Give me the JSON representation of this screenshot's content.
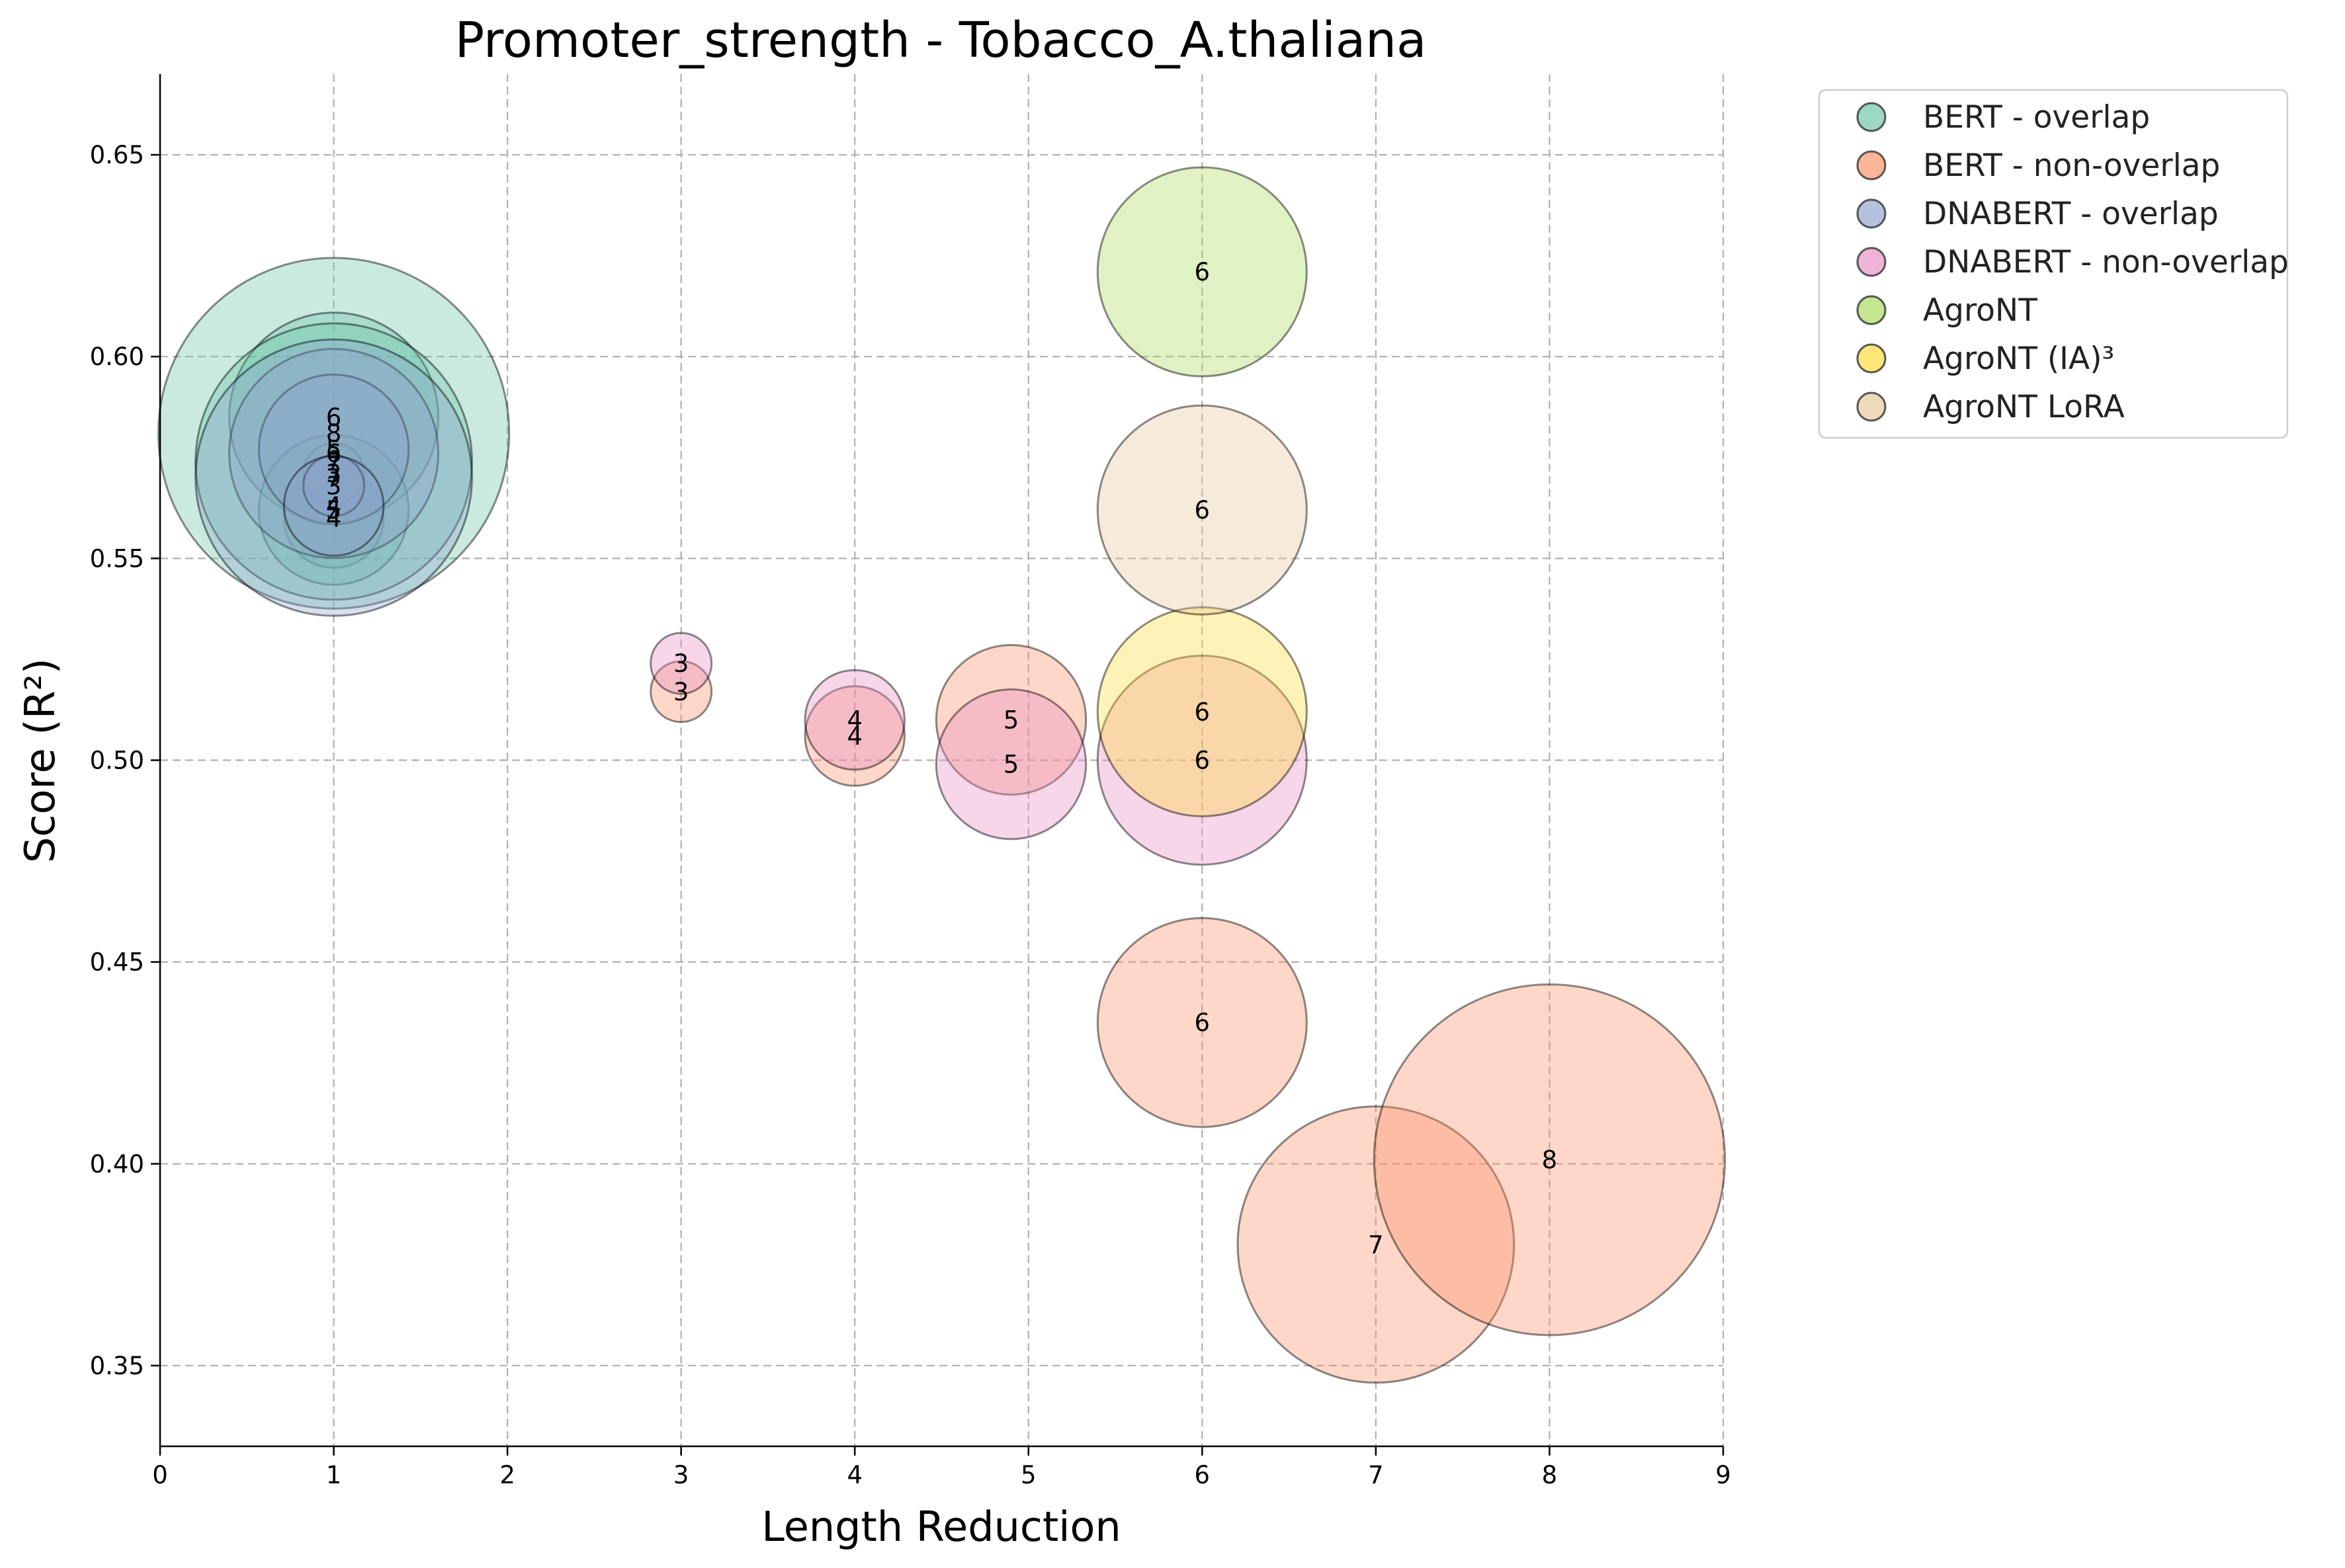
{
  "chart_data": {
    "type": "scatter",
    "title": "Promoter_strength - Tobacco_A.thaliana",
    "xlabel": "Length Reduction",
    "ylabel": "Score (R²)",
    "xlim": [
      0,
      9
    ],
    "ylim": [
      0.33,
      0.67
    ],
    "xticks": [
      "0",
      "1",
      "2",
      "3",
      "4",
      "5",
      "6",
      "7",
      "8",
      "9"
    ],
    "yticks": [
      "0.35",
      "0.40",
      "0.45",
      "0.50",
      "0.55",
      "0.60",
      "0.65"
    ],
    "grid": true,
    "legend_position": "outside-top-right",
    "size_encoding": "bubble area grows with the labelled value",
    "series": [
      {
        "name": "BERT - overlap",
        "color": "#66c2a5",
        "points": [
          {
            "x": 1.0,
            "y": 0.581,
            "label": "8"
          },
          {
            "x": 1.0,
            "y": 0.56,
            "label": "4"
          },
          {
            "x": 1.0,
            "y": 0.585,
            "label": "6"
          },
          {
            "x": 1.0,
            "y": 0.562,
            "label": "5"
          },
          {
            "x": 1.0,
            "y": 0.571,
            "label": "3"
          },
          {
            "x": 1.0,
            "y": 0.574,
            "label": "7"
          }
        ]
      },
      {
        "name": "BERT - non-overlap",
        "color": "#fc8d62",
        "points": [
          {
            "x": 3.0,
            "y": 0.517,
            "label": "3"
          },
          {
            "x": 4.0,
            "y": 0.506,
            "label": "4"
          },
          {
            "x": 4.9,
            "y": 0.51,
            "label": "5"
          },
          {
            "x": 6.0,
            "y": 0.435,
            "label": "6"
          },
          {
            "x": 7.0,
            "y": 0.38,
            "label": "7"
          },
          {
            "x": 8.0,
            "y": 0.401,
            "label": "8"
          }
        ]
      },
      {
        "name": "DNABERT - overlap",
        "color": "#8da0cb",
        "points": [
          {
            "x": 1.0,
            "y": 0.576,
            "label": "6"
          },
          {
            "x": 1.0,
            "y": 0.577,
            "label": "5"
          },
          {
            "x": 1.0,
            "y": 0.57,
            "label": "7"
          },
          {
            "x": 1.0,
            "y": 0.568,
            "label": "3"
          },
          {
            "x": 1.0,
            "y": 0.563,
            "label": "4"
          }
        ]
      },
      {
        "name": "DNABERT - non-overlap",
        "color": "#e78ac3",
        "points": [
          {
            "x": 3.0,
            "y": 0.524,
            "label": "3"
          },
          {
            "x": 4.0,
            "y": 0.51,
            "label": "4"
          },
          {
            "x": 4.9,
            "y": 0.499,
            "label": "5"
          },
          {
            "x": 6.0,
            "y": 0.5,
            "label": "6"
          }
        ]
      },
      {
        "name": "AgroNT",
        "color": "#a6d854",
        "points": [
          {
            "x": 6.0,
            "y": 0.621,
            "label": "6"
          }
        ]
      },
      {
        "name": "AgroNT (IA)³",
        "color": "#ffd92f",
        "points": [
          {
            "x": 6.0,
            "y": 0.512,
            "label": "6"
          }
        ]
      },
      {
        "name": "AgroNT LoRA",
        "color": "#e5c494",
        "points": [
          {
            "x": 6.0,
            "y": 0.562,
            "label": "6"
          }
        ]
      }
    ]
  }
}
